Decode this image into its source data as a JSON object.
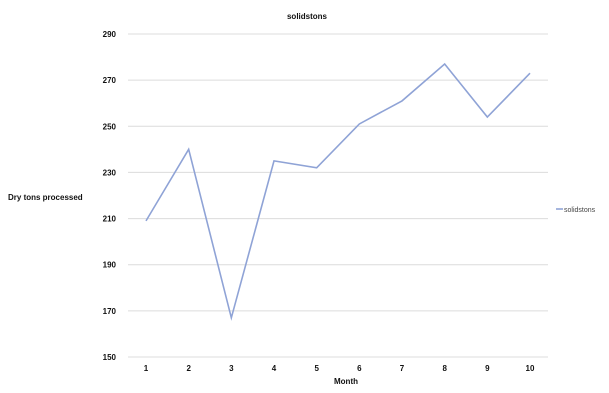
{
  "chart_data": {
    "type": "line",
    "title": "solidstons",
    "xlabel": "Month",
    "ylabel": "Dry tons processed",
    "x": [
      1,
      2,
      3,
      4,
      5,
      6,
      7,
      8,
      9,
      10
    ],
    "series": [
      {
        "name": "solidstons",
        "values": [
          209,
          240,
          167,
          235,
          232,
          251,
          261,
          277,
          254,
          273
        ],
        "color": "#8fa3d6"
      }
    ],
    "ylim": [
      150,
      290
    ],
    "yticks": [
      150,
      170,
      190,
      210,
      230,
      250,
      270,
      290
    ],
    "grid": true,
    "legend": "right"
  }
}
